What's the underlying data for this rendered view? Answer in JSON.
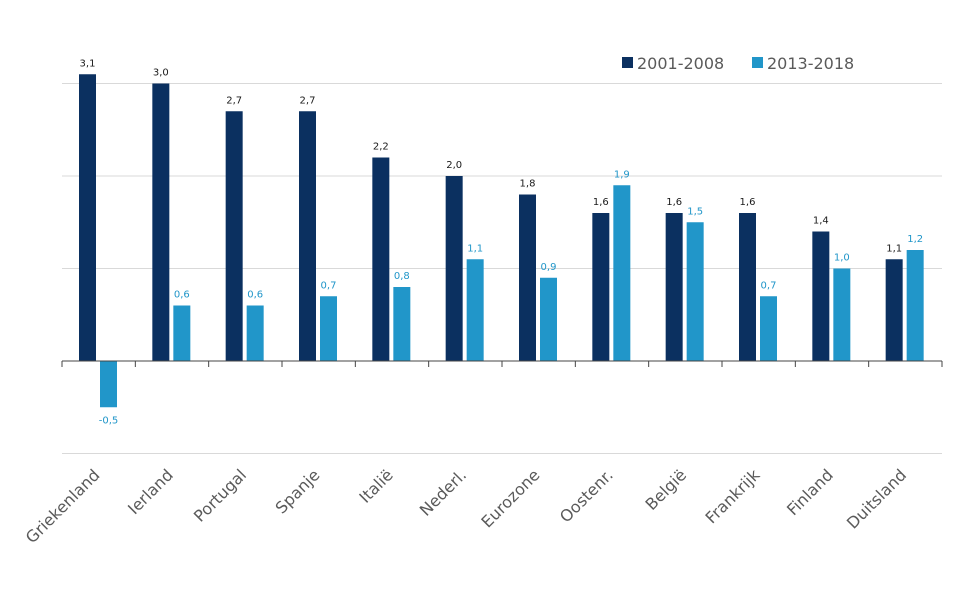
{
  "chart_data": {
    "type": "bar",
    "categories": [
      "Griekenland",
      "Ierland",
      "Portugal",
      "Spanje",
      "Italië",
      "Nederl.",
      "Eurozone",
      "Oostenr.",
      "België",
      "Frankrijk",
      "Finland",
      "Duitsland"
    ],
    "series": [
      {
        "name": "2001-2008",
        "color": "#0b3060",
        "values": [
          3.1,
          3.0,
          2.7,
          2.7,
          2.2,
          2.0,
          1.8,
          1.6,
          1.6,
          1.6,
          1.4,
          1.1
        ],
        "labels": [
          "3,1",
          "3,0",
          "2,7",
          "2,7",
          "2,2",
          "2,0",
          "1,8",
          "1,6",
          "1,6",
          "1,6",
          "1,4",
          "1,1"
        ]
      },
      {
        "name": "2013-2018",
        "color": "#2196c9",
        "values": [
          -0.5,
          0.6,
          0.6,
          0.7,
          0.8,
          1.1,
          0.9,
          1.9,
          1.5,
          0.7,
          1.0,
          1.2
        ],
        "labels": [
          "-0,5",
          "0,6",
          "0,6",
          "0,7",
          "0,8",
          "1,1",
          "0,9",
          "1,9",
          "1,5",
          "0,7",
          "1,0",
          "1,2"
        ]
      }
    ],
    "ylim": [
      -1,
      3
    ],
    "gridlines": [
      -1,
      0,
      1,
      2,
      3
    ],
    "grid": true,
    "legend_position": "top-right",
    "axis_color": "#444444",
    "grid_color": "#d9d9d9",
    "label_dark_color": "#1a1a1a",
    "label_light_color": "#2196c9"
  }
}
